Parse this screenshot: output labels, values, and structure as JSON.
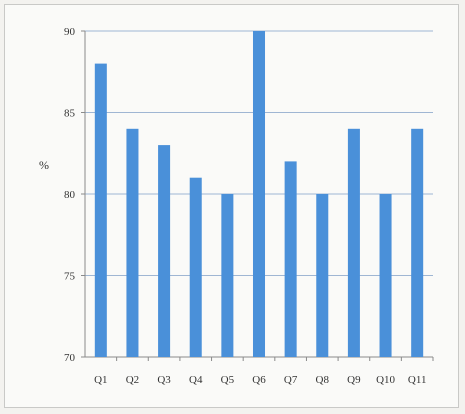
{
  "chart_data": {
    "type": "bar",
    "categories": [
      "Q1",
      "Q2",
      "Q3",
      "Q4",
      "Q5",
      "Q6",
      "Q7",
      "Q8",
      "Q9",
      "Q10",
      "Q11"
    ],
    "values": [
      88,
      84,
      83,
      81,
      80,
      90,
      82,
      80,
      84,
      80,
      84
    ],
    "title": "",
    "xlabel": "",
    "ylabel": "%",
    "ylim": [
      70,
      90
    ],
    "yticks": [
      70,
      75,
      80,
      85,
      90
    ],
    "grid": true,
    "bar_color": "#4a90d9",
    "grid_color": "#9fb6d3"
  }
}
